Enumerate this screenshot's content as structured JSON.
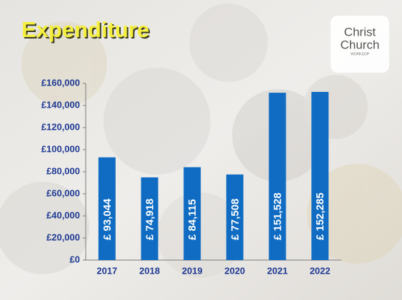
{
  "chart_data": {
    "type": "bar",
    "title": "Expenditure",
    "categories": [
      "2017",
      "2018",
      "2019",
      "2020",
      "2021",
      "2022"
    ],
    "values": [
      93044,
      74918,
      84115,
      77508,
      151528,
      152285
    ],
    "value_labels": [
      "£ 93,044",
      "£ 74,918",
      "£ 84,115",
      "£ 77,508",
      "£ 151,528",
      "£ 152,285"
    ],
    "color": "#0f6cc2",
    "ylim": [
      0,
      160000
    ],
    "yticks": [
      {
        "value": 0,
        "label": "£0"
      },
      {
        "value": 20000,
        "label": "£20,000"
      },
      {
        "value": 40000,
        "label": "£40,000"
      },
      {
        "value": 60000,
        "label": "£60,000"
      },
      {
        "value": 80000,
        "label": "£80,000"
      },
      {
        "value": 100000,
        "label": "£100,000"
      },
      {
        "value": 120000,
        "label": "£120,000"
      },
      {
        "value": 140000,
        "label": "£140,000"
      },
      {
        "value": 160000,
        "label": "£160,000"
      }
    ]
  },
  "logo": {
    "line1": "Christ",
    "line2": "Church",
    "tagline": "WORKSOP"
  }
}
